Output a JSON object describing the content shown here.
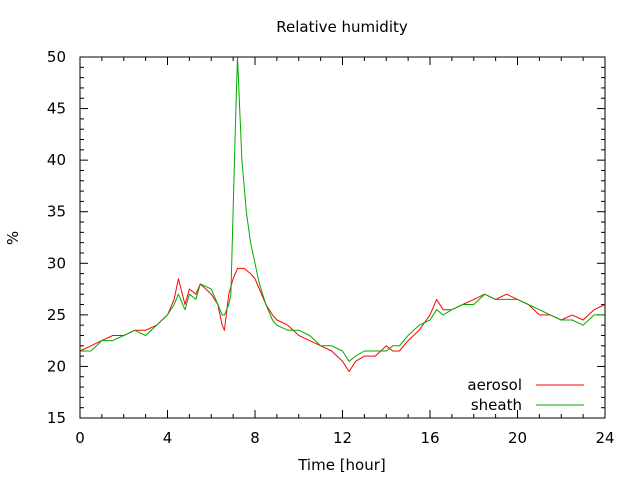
{
  "chart_data": {
    "type": "line",
    "title": "Relative humidity",
    "xlabel": "Time [hour]",
    "ylabel": "%",
    "xlim": [
      0,
      24
    ],
    "ylim": [
      15,
      50
    ],
    "xticks": [
      "0",
      "4",
      "8",
      "12",
      "16",
      "20",
      "24"
    ],
    "yticks": [
      "15",
      "20",
      "25",
      "30",
      "35",
      "40",
      "45",
      "50"
    ],
    "grid": false,
    "legend_position": "bottom-right",
    "series": [
      {
        "name": "aerosol",
        "color": "#ff0000",
        "x": [
          0,
          0.5,
          1,
          1.5,
          2,
          2.5,
          3,
          3.5,
          4,
          4.3,
          4.5,
          4.8,
          5,
          5.3,
          5.5,
          6,
          6.3,
          6.5,
          6.6,
          6.8,
          7,
          7.2,
          7.5,
          7.8,
          8,
          8.2,
          8.5,
          8.8,
          9,
          9.5,
          10,
          10.5,
          11,
          11.5,
          12,
          12.3,
          12.6,
          13,
          13.5,
          14,
          14.3,
          14.6,
          15,
          15.5,
          16,
          16.3,
          16.6,
          17,
          17.5,
          18,
          18.5,
          19,
          19.5,
          20,
          20.5,
          21,
          21.5,
          22,
          22.5,
          23,
          23.5,
          24
        ],
        "y": [
          21.5,
          22,
          22.5,
          23,
          23,
          23.5,
          23.5,
          24,
          25,
          26.5,
          28.5,
          26,
          27.5,
          27,
          28,
          27,
          26,
          24,
          23.5,
          27,
          28.5,
          29.5,
          29.5,
          29,
          28.5,
          27.5,
          26,
          25,
          24.5,
          24,
          23,
          22.5,
          22,
          21.5,
          20.5,
          19.5,
          20.5,
          21,
          21,
          22,
          21.5,
          21.5,
          22.5,
          23.5,
          25,
          26.5,
          25.5,
          25.5,
          26,
          26.5,
          27,
          26.5,
          27,
          26.5,
          26,
          25,
          25,
          24.5,
          25,
          24.5,
          25.5,
          26
        ]
      },
      {
        "name": "sheath",
        "color": "#00aa00",
        "x": [
          0,
          0.5,
          1,
          1.5,
          2,
          2.5,
          3,
          3.5,
          4,
          4.3,
          4.5,
          4.8,
          5,
          5.3,
          5.5,
          6,
          6.3,
          6.5,
          6.6,
          6.8,
          6.9,
          7.0,
          7.1,
          7.2,
          7.3,
          7.4,
          7.6,
          7.8,
          8,
          8.2,
          8.5,
          8.8,
          9,
          9.5,
          10,
          10.5,
          11,
          11.5,
          12,
          12.3,
          12.6,
          13,
          13.5,
          14,
          14.3,
          14.6,
          15,
          15.5,
          16,
          16.3,
          16.6,
          17,
          17.5,
          18,
          18.5,
          19,
          19.5,
          20,
          20.5,
          21,
          21.5,
          22,
          22.5,
          23,
          23.5,
          24
        ],
        "y": [
          21.5,
          21.5,
          22.5,
          22.5,
          23,
          23.5,
          23,
          24,
          25,
          26,
          27,
          25.5,
          27,
          26.5,
          28,
          27.5,
          26,
          25,
          25,
          26,
          27,
          35,
          43,
          50,
          45,
          40,
          35,
          32,
          30,
          28,
          26,
          24.5,
          24,
          23.5,
          23.5,
          23,
          22,
          22,
          21.5,
          20.5,
          21,
          21.5,
          21.5,
          21.5,
          22,
          22,
          23,
          24,
          24.5,
          25.5,
          25,
          25.5,
          26,
          26,
          27,
          26.5,
          26.5,
          26.5,
          26,
          25.5,
          25,
          24.5,
          24.5,
          24,
          25,
          25
        ]
      }
    ]
  }
}
